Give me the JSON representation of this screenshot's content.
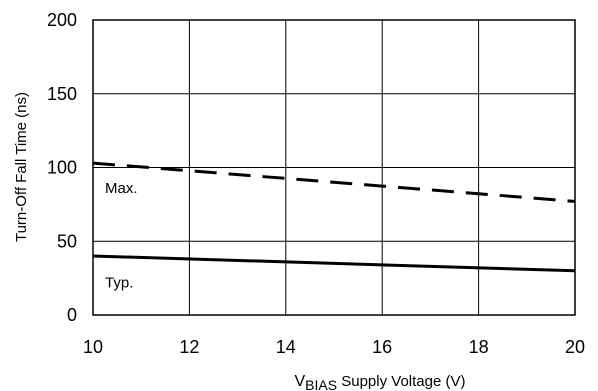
{
  "chart_data": {
    "type": "line",
    "title": "",
    "xlabel": {
      "main": "V",
      "subscript": "BIAS",
      "rest": " Supply Voltage (V)"
    },
    "ylabel": "Turn-Off Fall Time (ns)",
    "xlim": [
      10,
      20
    ],
    "ylim": [
      0,
      200
    ],
    "xticks": [
      10,
      12,
      14,
      16,
      18,
      20
    ],
    "yticks": [
      0,
      50,
      100,
      150,
      200
    ],
    "grid": true,
    "colors": {
      "line": "#000000",
      "grid": "#000000"
    },
    "series": [
      {
        "name": "Max.",
        "style": "dashed",
        "x": [
          10,
          20
        ],
        "y": [
          103,
          77
        ]
      },
      {
        "name": "Typ.",
        "style": "solid",
        "x": [
          10,
          20
        ],
        "y": [
          40,
          30
        ]
      }
    ],
    "annotations": [
      {
        "text": "Max.",
        "x": 10.25,
        "y": 86
      },
      {
        "text": "Typ.",
        "x": 10.25,
        "y": 22
      }
    ]
  }
}
